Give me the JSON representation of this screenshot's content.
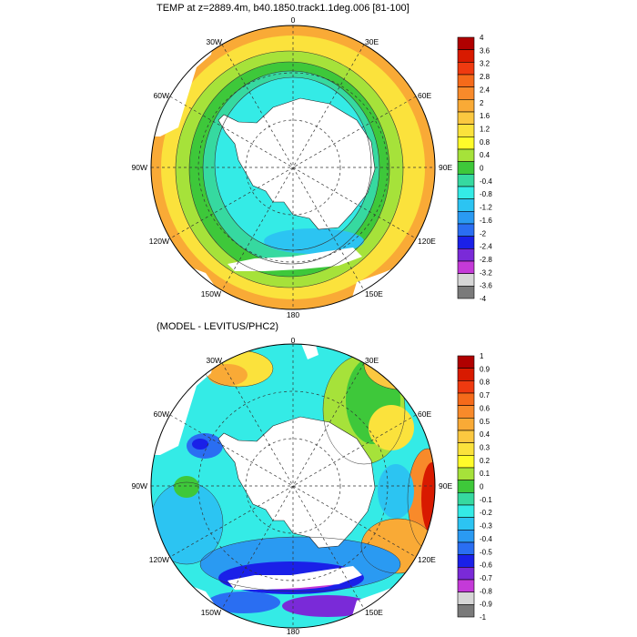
{
  "panels": [
    {
      "title": "TEMP at z=2889.4m, b40.1850.track1.1deg.006 [81-100]",
      "lon_labels": [
        "0",
        "30E",
        "60E",
        "90E",
        "120E",
        "150E",
        "180",
        "150W",
        "120W",
        "90W",
        "60W",
        "30W"
      ],
      "colorbar": {
        "labels": [
          "4",
          "3.6",
          "3.2",
          "2.8",
          "2.4",
          "2",
          "1.6",
          "1.2",
          "0.8",
          "0.4",
          "0",
          "-0.4",
          "-0.8",
          "-1.2",
          "-1.6",
          "-2",
          "-2.4",
          "-2.8",
          "-3.2",
          "-3.6",
          "-4"
        ],
        "colors": [
          "#b00000",
          "#d81a00",
          "#ef3a10",
          "#f56a1a",
          "#f88a2a",
          "#f9aa36",
          "#fbc840",
          "#fbe23c",
          "#fffb2a",
          "#a6e23a",
          "#3ec83a",
          "#36d9a0",
          "#34ebe6",
          "#2cc4f2",
          "#2a9af2",
          "#2a6ef2",
          "#1a20e8",
          "#7a2ad8",
          "#c43ad8",
          "#d6d6d6",
          "#7a7a7a"
        ]
      }
    },
    {
      "title": "(MODEL - LEVITUS/PHC2)",
      "lon_labels": [
        "0",
        "30E",
        "60E",
        "90E",
        "120E",
        "150E",
        "180",
        "150W",
        "120W",
        "90W",
        "60W",
        "30W"
      ],
      "colorbar": {
        "labels": [
          "1",
          "0.9",
          "0.8",
          "0.7",
          "0.6",
          "0.5",
          "0.4",
          "0.3",
          "0.2",
          "0.1",
          "0",
          "-0.1",
          "-0.2",
          "-0.3",
          "-0.4",
          "-0.5",
          "-0.6",
          "-0.7",
          "-0.8",
          "-0.9",
          "-1"
        ],
        "colors": [
          "#b00000",
          "#d81a00",
          "#ef3a10",
          "#f56a1a",
          "#f88a2a",
          "#f9aa36",
          "#fbc840",
          "#fbe23c",
          "#fffb2a",
          "#a6e23a",
          "#3ec83a",
          "#36d9a0",
          "#34ebe6",
          "#2cc4f2",
          "#2a9af2",
          "#2a6ef2",
          "#1a20e8",
          "#7a2ad8",
          "#c43ad8",
          "#d6d6d6",
          "#7a7a7a"
        ]
      }
    }
  ]
}
